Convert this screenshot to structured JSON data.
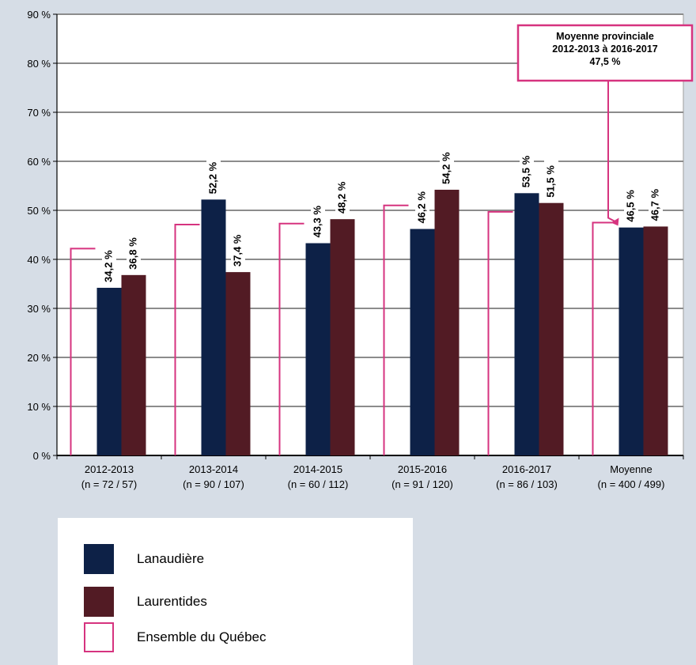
{
  "chart_data": {
    "type": "bar",
    "categories": [
      "2012-2013",
      "2013-2014",
      "2014-2015",
      "2015-2016",
      "2016-2017",
      "Moyenne"
    ],
    "category_sublabels": [
      "(n = 72 / 57)",
      "(n = 90 / 107)",
      "(n = 60 / 112)",
      "(n = 91 / 120)",
      "(n = 86 / 103)",
      "(n = 400 / 499)"
    ],
    "series": [
      {
        "name": "Ensemble du Québec",
        "values": [
          42.2,
          47.1,
          47.3,
          51.0,
          49.7,
          47.5
        ],
        "color": "#ffffff",
        "stroke": "#d6337f"
      },
      {
        "name": "Lanaudière",
        "values": [
          34.2,
          52.2,
          43.3,
          46.2,
          53.5,
          46.5
        ],
        "color": "#0d2147"
      },
      {
        "name": "Laurentides",
        "values": [
          36.8,
          37.4,
          48.2,
          54.2,
          51.5,
          46.7
        ],
        "color": "#521b24"
      }
    ],
    "data_labels": {
      "Lanaudière": [
        "34,2 %",
        "52,2 %",
        "43,3 %",
        "46,2 %",
        "53,5 %",
        "46,5 %"
      ],
      "Laurentides": [
        "36,8 %",
        "37,4 %",
        "48,2 %",
        "54,2 %",
        "51,5 %",
        "46,7 %"
      ]
    },
    "y_ticks": [
      "0 %",
      "10 %",
      "20 %",
      "30 %",
      "40 %",
      "50 %",
      "60 %",
      "70 %",
      "80 %",
      "90 %"
    ],
    "ylim": [
      0,
      90
    ],
    "grid": true,
    "annotation": {
      "lines": [
        "Moyenne provinciale",
        "2012-2013  à 2016-2017",
        "47,5 %"
      ],
      "points_to_value": 47.5,
      "color": "#d6337f"
    },
    "legend_position": "bottom-left",
    "title": "",
    "xlabel": "",
    "ylabel": ""
  },
  "legend": {
    "items": [
      {
        "label": "Lanaudière",
        "fill": "#0d2147",
        "border": "#0d2147"
      },
      {
        "label": "Laurentides",
        "fill": "#521b24",
        "border": "#521b24"
      },
      {
        "label": "Ensemble du Québec",
        "fill": "#ffffff",
        "border": "#d6337f"
      }
    ]
  }
}
